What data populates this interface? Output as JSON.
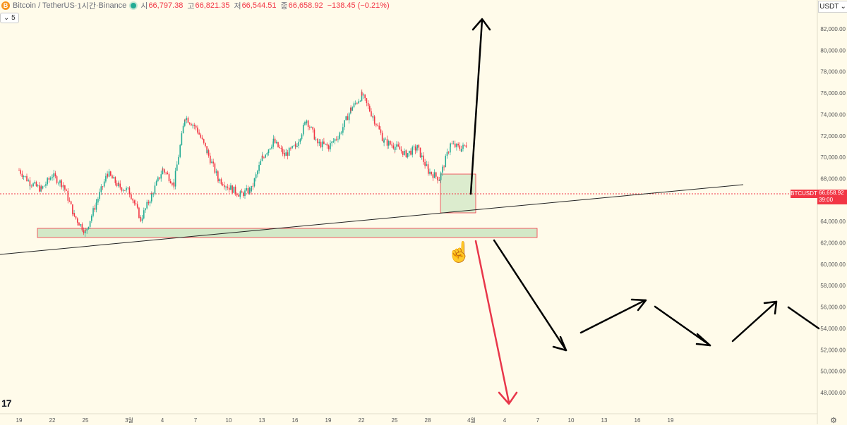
{
  "header": {
    "symbol": "Bitcoin / TetherUS",
    "sep1": " · ",
    "interval": "1시간",
    "sep2": " · ",
    "exchange": "Binance",
    "open_label": "시",
    "open": "66,797.38",
    "high_label": "고",
    "high": "66,821.35",
    "low_label": "저",
    "low": "66,544.51",
    "close_label": "종",
    "close": "66,658.92",
    "change": "−138.45 (−0.21%)",
    "collapse_count": "5",
    "btc_icon_letter": "B"
  },
  "currency_selector": {
    "label": "USDT",
    "icon": "chevron-down-icon"
  },
  "price_tag": {
    "symbol": "BTCUSDT",
    "price": "66,658.92",
    "countdown": "39:00",
    "color": "#f23645"
  },
  "logo_text": "17",
  "colors": {
    "background": "#fffbea",
    "up": "#22ab94",
    "down": "#f23645",
    "zone_fill": "#d3e8c7",
    "zone_border": "#f23645"
  },
  "chart_data": {
    "type": "candlestick",
    "y_axis": {
      "ticks": [
        48000,
        50000,
        52000,
        54000,
        56000,
        58000,
        60000,
        62000,
        64000,
        66000,
        68000,
        70000,
        72000,
        74000,
        76000,
        78000,
        80000,
        82000
      ],
      "tick_labels": [
        "48,000.00",
        "50,000.00",
        "52,000.00",
        "54,000.00",
        "56,000.00",
        "58,000.00",
        "60,000.00",
        "62,000.00",
        "64,000.00",
        "66,000.00",
        "68,000.00",
        "70,000.00",
        "72,000.00",
        "74,000.00",
        "76,000.00",
        "78,000.00",
        "80,000.00",
        "82,000.00"
      ],
      "range": [
        46000,
        84000
      ]
    },
    "x_axis": {
      "tick_labels": [
        "19",
        "22",
        "25",
        "3월",
        "4",
        "7",
        "10",
        "13",
        "16",
        "19",
        "22",
        "25",
        "28",
        "4월",
        "4",
        "7",
        "10",
        "13",
        "16",
        "19"
      ]
    },
    "current_price": 66658.92,
    "price_path": [
      [
        "2024-02-19",
        68800
      ],
      [
        "2024-02-20",
        67600
      ],
      [
        "2024-02-21",
        67000
      ],
      [
        "2024-02-22",
        68300
      ],
      [
        "2024-02-23",
        67400
      ],
      [
        "2024-02-24",
        64500
      ],
      [
        "2024-02-25",
        63000
      ],
      [
        "2024-02-26",
        65800
      ],
      [
        "2024-02-27",
        68500
      ],
      [
        "2024-02-28",
        67300
      ],
      [
        "2024-02-29",
        66800
      ],
      [
        "2024-03-01",
        64200
      ],
      [
        "2024-03-02",
        66500
      ],
      [
        "2024-03-03",
        68900
      ],
      [
        "2024-03-04",
        67500
      ],
      [
        "2024-03-05",
        73800
      ],
      [
        "2024-03-06",
        72800
      ],
      [
        "2024-03-07",
        70500
      ],
      [
        "2024-03-08",
        68000
      ],
      [
        "2024-03-09",
        67200
      ],
      [
        "2024-03-10",
        66500
      ],
      [
        "2024-03-11",
        67000
      ],
      [
        "2024-03-12",
        70000
      ],
      [
        "2024-03-13",
        71500
      ],
      [
        "2024-03-14",
        70200
      ],
      [
        "2024-03-15",
        71000
      ],
      [
        "2024-03-16",
        73500
      ],
      [
        "2024-03-17",
        71300
      ],
      [
        "2024-03-18",
        71000
      ],
      [
        "2024-03-19",
        72200
      ],
      [
        "2024-03-20",
        74500
      ],
      [
        "2024-03-21",
        75800
      ],
      [
        "2024-03-22",
        73800
      ],
      [
        "2024-03-23",
        71500
      ],
      [
        "2024-03-24",
        71000
      ],
      [
        "2024-03-25",
        70300
      ],
      [
        "2024-03-26",
        70900
      ],
      [
        "2024-03-27",
        68700
      ],
      [
        "2024-03-28",
        68000
      ],
      [
        "2024-03-29",
        71200
      ],
      [
        "2024-03-30",
        70800
      ],
      [
        "2024-03-31",
        71700
      ],
      [
        "2024-04-01",
        69500
      ],
      [
        "2024-04-02",
        68600
      ],
      [
        "2024-04-03",
        66000
      ],
      [
        "2024-04-04",
        65700
      ],
      [
        "2024-04-05",
        66800
      ],
      [
        "2024-04-06",
        67300
      ],
      [
        "2024-04-07",
        68000
      ],
      [
        "2024-04-08",
        66658.92
      ]
    ],
    "support_zone": {
      "low": 62600,
      "high": 63300
    },
    "highlight_box": {
      "low": 64900,
      "high": 68500
    },
    "trendline": {
      "from": [
        "2024-02-12",
        61000
      ],
      "to": [
        "2024-05-04",
        67800
      ]
    }
  }
}
